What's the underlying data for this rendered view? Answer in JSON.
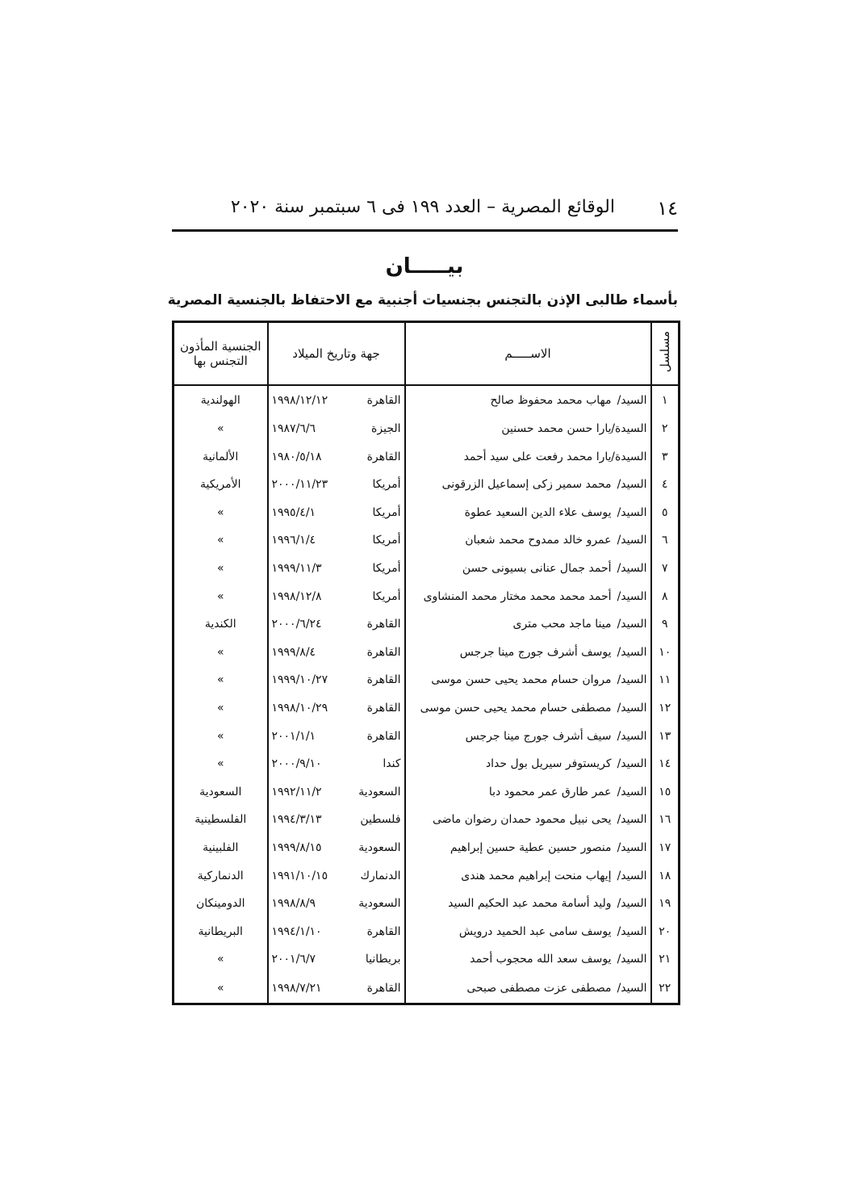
{
  "header": {
    "page_number": "١٤",
    "running_title": "الوقائع المصرية – العدد ١٩٩ فى ٦ سبتمبر سنة ٢٠٢٠"
  },
  "title": "بيـــــان",
  "subtitle": "بأسماء طالبى الإذن بالتجنس بجنسيات أجنبية مع الاحتفاظ بالجنسية المصرية",
  "table": {
    "headers": [
      "مسلسل",
      "الاســـــم",
      "جهة وتاريخ الميلاد",
      "الجنسية المأذون التجنس بها"
    ],
    "rows": [
      [
        "١",
        "السيد/",
        "مهاب محمد محفوظ صالح",
        "القاهرة",
        "١٩٩٨/١٢/١٢",
        "الهولندية"
      ],
      [
        "٢",
        "السيدة/",
        "يارا حسن محمد حسنين",
        "الجيزة",
        "١٩٨٧/٦/٦",
        "»"
      ],
      [
        "٣",
        "السيدة/",
        "يارا محمد رفعت على سيد أحمد",
        "القاهرة",
        "١٩٨٠/٥/١٨",
        "الألمانية"
      ],
      [
        "٤",
        "السيد/",
        "محمد سمير زكى إسماعيل الزرقونى",
        "أمريكا",
        "٢٠٠٠/١١/٢٣",
        "الأمريكية"
      ],
      [
        "٥",
        "السيد/",
        "يوسف علاء الدين السعيد عطوة",
        "أمريكا",
        "١٩٩٥/٤/١",
        "»"
      ],
      [
        "٦",
        "السيد/",
        "عمرو خالد ممدوح محمد شعبان",
        "أمريكا",
        "١٩٩٦/١/٤",
        "»"
      ],
      [
        "٧",
        "السيد/",
        "أحمد جمال عنانى بسيونى حسن",
        "أمريكا",
        "١٩٩٩/١١/٣",
        "»"
      ],
      [
        "٨",
        "السيد/",
        "أحمد محمد محمد مختار محمد المنشاوى",
        "أمريكا",
        "١٩٩٨/١٢/٨",
        "»"
      ],
      [
        "٩",
        "السيد/",
        "مينا ماجد محب مترى",
        "القاهرة",
        "٢٠٠٠/٦/٢٤",
        "الكندية"
      ],
      [
        "١٠",
        "السيد/",
        "يوسف أشرف جورج مينا جرجس",
        "القاهرة",
        "١٩٩٩/٨/٤",
        "»"
      ],
      [
        "١١",
        "السيد/",
        "مروان حسام محمد يحيى حسن موسى",
        "القاهرة",
        "١٩٩٩/١٠/٢٧",
        "»"
      ],
      [
        "١٢",
        "السيد/",
        "مصطفى حسام محمد يحيى حسن موسى",
        "القاهرة",
        "١٩٩٨/١٠/٢٩",
        "»"
      ],
      [
        "١٣",
        "السيد/",
        "سيف أشرف جورج مينا جرجس",
        "القاهرة",
        "٢٠٠١/١/١",
        "»"
      ],
      [
        "١٤",
        "السيد/",
        "كريستوفر سيريل بول حداد",
        "كندا",
        "٢٠٠٠/٩/١٠",
        "»"
      ],
      [
        "١٥",
        "السيد/",
        "عمر طارق عمر محمود دبا",
        "السعودية",
        "١٩٩٢/١١/٢",
        "السعودية"
      ],
      [
        "١٦",
        "السيد/",
        "يحى نبيل محمود حمدان رضوان ماضى",
        "فلسطين",
        "١٩٩٤/٣/١٣",
        "الفلسطينية"
      ],
      [
        "١٧",
        "السيد/",
        "منصور حسين عطية حسين إبراهيم",
        "السعودية",
        "١٩٩٩/٨/١٥",
        "الفلبينية"
      ],
      [
        "١٨",
        "السيد/",
        "إيهاب منحت إبراهيم محمد هندى",
        "الدنمارك",
        "١٩٩١/١٠/١٥",
        "الدنماركية"
      ],
      [
        "١٩",
        "السيد/",
        "وليد أسامة محمد عبد الحكيم السيد",
        "السعودية",
        "١٩٩٨/٨/٩",
        "الدومينكان"
      ],
      [
        "٢٠",
        "السيد/",
        "يوسف سامى عبد الحميد درويش",
        "القاهرة",
        "١٩٩٤/١/١٠",
        "البريطانية"
      ],
      [
        "٢١",
        "السيد/",
        "يوسف سعد الله محجوب أحمد",
        "بريطانيا",
        "٢٠٠١/٦/٧",
        "»"
      ],
      [
        "٢٢",
        "السيد/",
        "مصطفى عزت مصطفى صبحى",
        "القاهرة",
        "١٩٩٨/٧/٢١",
        "»"
      ]
    ]
  }
}
